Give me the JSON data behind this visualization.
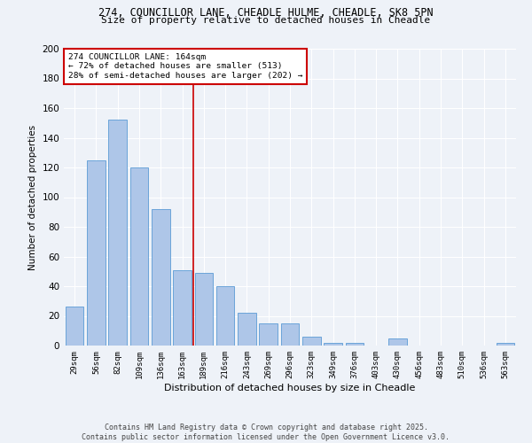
{
  "title1": "274, COUNCILLOR LANE, CHEADLE HULME, CHEADLE, SK8 5PN",
  "title2": "Size of property relative to detached houses in Cheadle",
  "xlabel": "Distribution of detached houses by size in Cheadle",
  "ylabel": "Number of detached properties",
  "categories": [
    "29sqm",
    "56sqm",
    "82sqm",
    "109sqm",
    "136sqm",
    "163sqm",
    "189sqm",
    "216sqm",
    "243sqm",
    "269sqm",
    "296sqm",
    "323sqm",
    "349sqm",
    "376sqm",
    "403sqm",
    "430sqm",
    "456sqm",
    "483sqm",
    "510sqm",
    "536sqm",
    "563sqm"
  ],
  "values": [
    26,
    125,
    152,
    120,
    92,
    51,
    49,
    40,
    22,
    15,
    15,
    6,
    2,
    2,
    0,
    5,
    0,
    0,
    0,
    0,
    2
  ],
  "bar_color": "#aec6e8",
  "bar_edge_color": "#5b9bd5",
  "vline_x": 5.5,
  "vline_color": "#cc0000",
  "annotation_text": "274 COUNCILLOR LANE: 164sqm\n← 72% of detached houses are smaller (513)\n28% of semi-detached houses are larger (202) →",
  "annotation_box_color": "#cc0000",
  "footer1": "Contains HM Land Registry data © Crown copyright and database right 2025.",
  "footer2": "Contains public sector information licensed under the Open Government Licence v3.0.",
  "ylim": [
    0,
    200
  ],
  "yticks": [
    0,
    20,
    40,
    60,
    80,
    100,
    120,
    140,
    160,
    180,
    200
  ],
  "bg_color": "#eef2f8",
  "grid_color": "#ffffff"
}
